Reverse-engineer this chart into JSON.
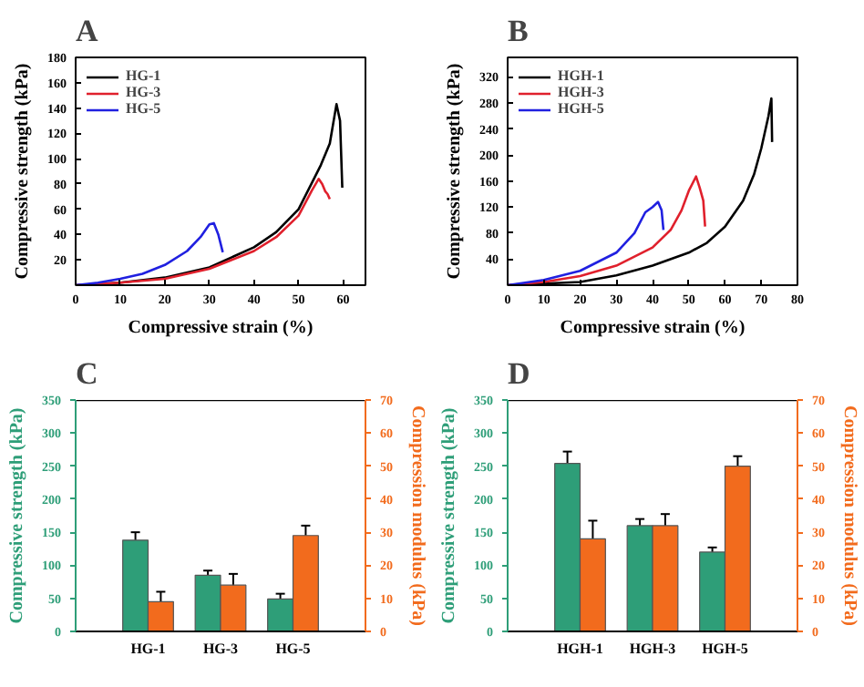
{
  "chart_data": [
    {
      "type": "line",
      "title": "A",
      "xlabel": "Compressive strain (%)",
      "ylabel": "Compressive strength (kPa)",
      "xlim": [
        0,
        65
      ],
      "ylim": [
        0,
        180
      ],
      "xticks": [
        0,
        10,
        20,
        30,
        40,
        50,
        60
      ],
      "yticks": [
        20,
        40,
        60,
        80,
        100,
        120,
        140,
        160,
        180
      ],
      "legend": "top left",
      "grid": false,
      "series": [
        {
          "name": "HG-1",
          "color": "#000000",
          "x": [
            0,
            10,
            20,
            30,
            40,
            45,
            50,
            55,
            57,
            58.5,
            59.3,
            59.8
          ],
          "values": [
            0,
            2,
            6,
            14,
            30,
            42,
            60,
            95,
            112,
            143,
            130,
            77
          ]
        },
        {
          "name": "HG-3",
          "color": "#e0202c",
          "x": [
            0,
            10,
            20,
            30,
            40,
            45,
            50,
            53,
            54.5,
            55.3,
            56,
            56.5,
            57
          ],
          "values": [
            0,
            2,
            5,
            13,
            27,
            38,
            55,
            75,
            84,
            80,
            74,
            72,
            68
          ]
        },
        {
          "name": "HG-5",
          "color": "#2020e0",
          "x": [
            0,
            5,
            10,
            15,
            20,
            25,
            28,
            30,
            31,
            32,
            33
          ],
          "values": [
            0,
            2,
            5,
            9,
            16,
            27,
            38,
            48,
            49,
            40,
            26
          ]
        }
      ]
    },
    {
      "type": "line",
      "title": "B",
      "xlabel": "Compressive strain (%)",
      "ylabel": "Compressive strength (kPa)",
      "xlim": [
        0,
        80
      ],
      "ylim": [
        0,
        350
      ],
      "xticks": [
        0,
        10,
        20,
        30,
        40,
        50,
        60,
        70,
        80
      ],
      "yticks": [
        40,
        80,
        120,
        160,
        200,
        240,
        280,
        320
      ],
      "legend": "top left",
      "grid": false,
      "series": [
        {
          "name": "HGH-1",
          "color": "#000000",
          "x": [
            0,
            20,
            30,
            40,
            50,
            55,
            60,
            65,
            68,
            70,
            72,
            72.8,
            73
          ],
          "values": [
            0,
            5,
            15,
            30,
            50,
            65,
            90,
            130,
            170,
            210,
            260,
            287,
            220
          ]
        },
        {
          "name": "HGH-3",
          "color": "#e0202c",
          "x": [
            0,
            10,
            20,
            30,
            40,
            45,
            48,
            50,
            52,
            53,
            54,
            54.5
          ],
          "values": [
            0,
            5,
            14,
            30,
            58,
            85,
            115,
            145,
            167,
            150,
            130,
            90
          ]
        },
        {
          "name": "HGH-5",
          "color": "#2020e0",
          "x": [
            0,
            10,
            20,
            30,
            35,
            38,
            40,
            41.5,
            42.5,
            43
          ],
          "values": [
            0,
            8,
            22,
            50,
            80,
            112,
            120,
            128,
            115,
            85
          ]
        }
      ]
    },
    {
      "type": "bar",
      "title": "C",
      "ylabel": "Compressive strength (kPa)",
      "y2label": "Compression modulus (kPa)",
      "categories": [
        "HG-1",
        "HG-3",
        "HG-5"
      ],
      "ylim": [
        0,
        350
      ],
      "yticks": [
        0,
        50,
        100,
        150,
        200,
        250,
        300,
        350
      ],
      "y2lim": [
        0,
        70
      ],
      "y2ticks": [
        0,
        10,
        20,
        30,
        40,
        50,
        60,
        70
      ],
      "grid": false,
      "series": [
        {
          "color": "#2e9e78",
          "values": [
            138,
            85,
            49
          ],
          "errors": [
            12,
            7,
            8
          ]
        },
        {
          "color": "#f26b1d",
          "axis": "y2",
          "values": [
            9,
            14,
            29
          ],
          "errors": [
            3,
            3.4,
            3
          ]
        }
      ]
    },
    {
      "type": "bar",
      "title": "D",
      "ylabel": "Compressive strength (kPa)",
      "y2label": "Compression modulus (kPa)",
      "categories": [
        "HGH-1",
        "HGH-3",
        "HGH-5"
      ],
      "ylim": [
        0,
        350
      ],
      "yticks": [
        0,
        50,
        100,
        150,
        200,
        250,
        300,
        350
      ],
      "y2lim": [
        0,
        70
      ],
      "y2ticks": [
        0,
        10,
        20,
        30,
        40,
        50,
        60,
        70
      ],
      "grid": false,
      "series": [
        {
          "color": "#2e9e78",
          "values": [
            254,
            160,
            120
          ],
          "errors": [
            18,
            10,
            7
          ]
        },
        {
          "color": "#f26b1d",
          "axis": "y2",
          "values": [
            28,
            32,
            50
          ],
          "errors": [
            5.5,
            3.5,
            3
          ]
        }
      ]
    }
  ]
}
